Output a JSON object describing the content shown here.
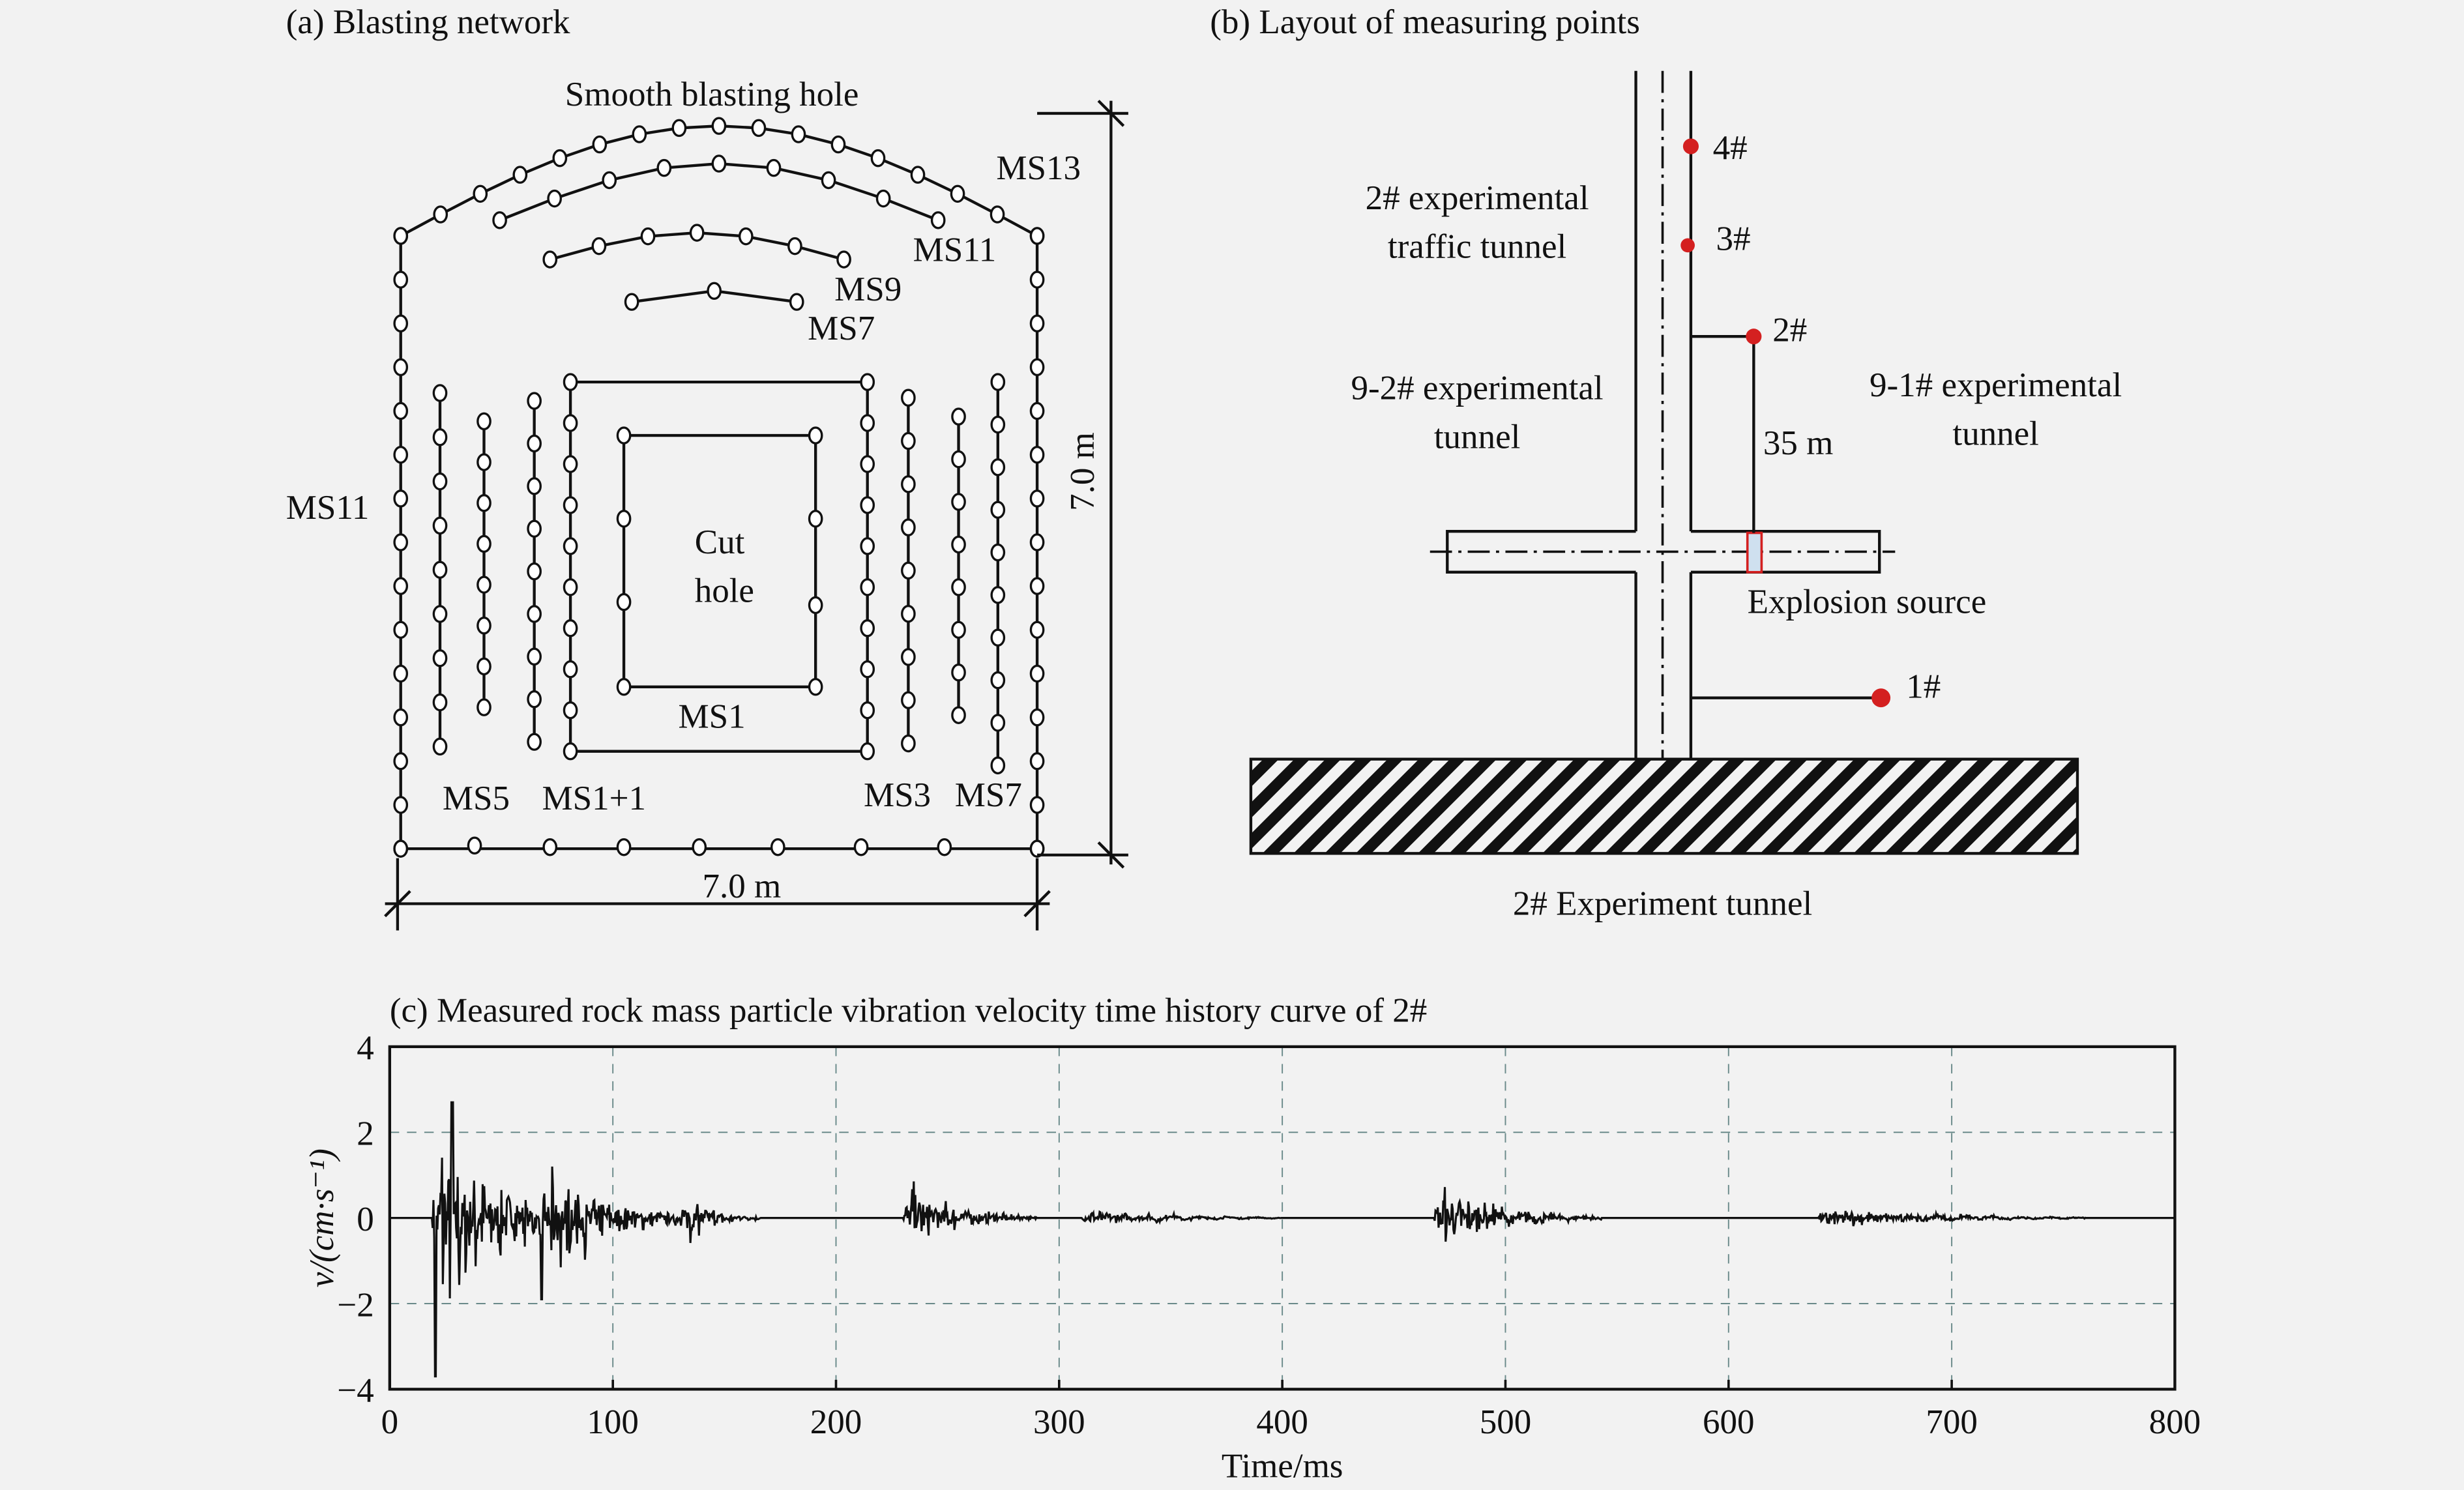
{
  "panel_a": {
    "title": "(a) Blasting network",
    "labels": {
      "smooth": "Smooth blasting hole",
      "ms13": "MS13",
      "ms11_top": "MS11",
      "ms9": "MS9",
      "ms7_top": "MS7",
      "ms11_left": "MS11",
      "cut1": "Cut",
      "cut2": "hole",
      "ms1": "MS1",
      "ms5": "MS5",
      "ms1p1": "MS1+1",
      "ms3": "MS3",
      "ms7_bottom": "MS7",
      "height": "7.0 m",
      "width": "7.0 m"
    }
  },
  "panel_b": {
    "title": "(b) Layout of measuring points",
    "labels": {
      "traffic1": "2# experimental",
      "traffic2": "traffic tunnel",
      "t92a": "9-2# experimental",
      "t92b": "tunnel",
      "t91a": "9-1# experimental",
      "t91b": "tunnel",
      "distance": "35 m",
      "source": "Explosion source",
      "main": "2# Experiment tunnel"
    },
    "points": [
      "4#",
      "3#",
      "2#",
      "1#"
    ],
    "point_color": "#d42020"
  },
  "chart_data": {
    "type": "line",
    "title": "(c) Measured rock mass particle vibration velocity time history curve of 2#",
    "xlabel": "Time/ms",
    "ylabel": "v/(cm·s⁻¹)",
    "xlim": [
      0,
      800
    ],
    "ylim": [
      -4,
      4
    ],
    "xticks": [
      "0",
      "100",
      "200",
      "300",
      "400",
      "500",
      "600",
      "700",
      "800"
    ],
    "yticks": [
      "4",
      "2",
      "0",
      "−2",
      "−4"
    ],
    "grid": true,
    "bursts": [
      {
        "start": 19,
        "max": 2.7,
        "min": -3.7,
        "decay": 25
      },
      {
        "start": 68,
        "max": 1.3,
        "min": -1.9,
        "decay": 25
      },
      {
        "start": 130,
        "max": 0.8,
        "min": -0.9,
        "decay": 12
      },
      {
        "start": 230,
        "max": 1.2,
        "min": -0.9,
        "decay": 20
      },
      {
        "start": 310,
        "max": 0.25,
        "min": -0.2,
        "decay": 30
      },
      {
        "start": 468,
        "max": 1.0,
        "min": -0.9,
        "decay": 25
      },
      {
        "start": 640,
        "max": 0.3,
        "min": -0.3,
        "decay": 40
      }
    ]
  }
}
